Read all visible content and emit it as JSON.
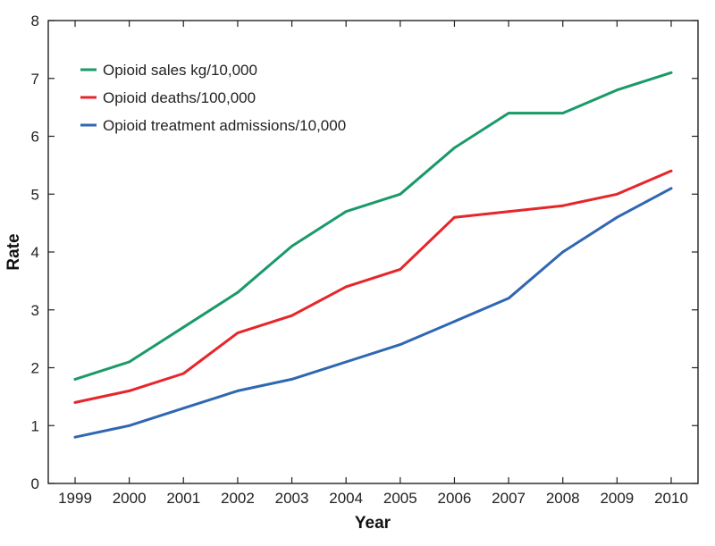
{
  "chart_data": {
    "type": "line",
    "title": "",
    "xlabel": "Year",
    "ylabel": "Rate",
    "x": [
      "1999",
      "2000",
      "2001",
      "2002",
      "2003",
      "2004",
      "2005",
      "2006",
      "2007",
      "2008",
      "2009",
      "2010"
    ],
    "ylim": [
      0,
      8
    ],
    "yticks": [
      0,
      1,
      2,
      3,
      4,
      5,
      6,
      7,
      8
    ],
    "grid": false,
    "legend_position": "top-left",
    "series": [
      {
        "name": "Opioid sales kg/10,000",
        "color": "#1a9a68",
        "values": [
          1.8,
          2.1,
          2.7,
          3.3,
          4.1,
          4.7,
          5.0,
          5.8,
          6.4,
          6.4,
          6.8,
          7.1
        ]
      },
      {
        "name": "Opioid deaths/100,000",
        "color": "#e5262a",
        "values": [
          1.4,
          1.6,
          1.9,
          2.6,
          2.9,
          3.4,
          3.7,
          4.6,
          4.7,
          4.8,
          5.0,
          5.4
        ]
      },
      {
        "name": "Opioid treatment admissions/10,000",
        "color": "#2f67b2",
        "values": [
          0.8,
          1.0,
          1.3,
          1.6,
          1.8,
          2.1,
          2.4,
          2.8,
          3.2,
          4.0,
          4.6,
          5.1
        ]
      }
    ]
  }
}
